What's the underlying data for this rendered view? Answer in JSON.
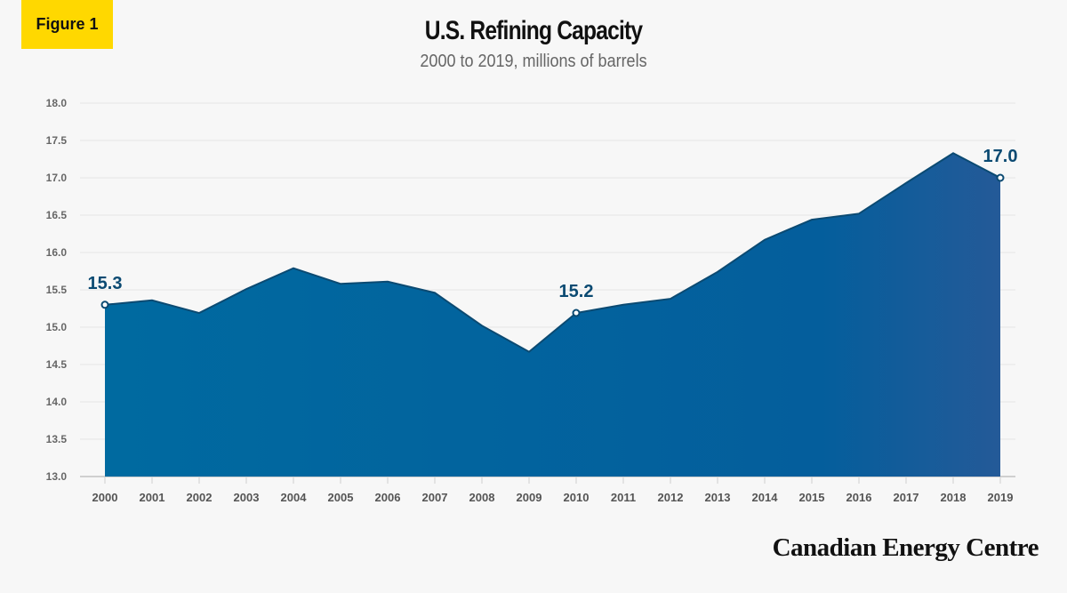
{
  "badge": "Figure 1",
  "brand": "Canadian Energy Centre",
  "chart_data": {
    "type": "area",
    "title": "U.S. Refining Capacity",
    "subtitle": "2000 to 2019, millions of barrels",
    "xlabel": "",
    "ylabel": "",
    "ylim": [
      13.0,
      18.0
    ],
    "yticks": [
      "13.0",
      "13.5",
      "14.0",
      "14.5",
      "15.0",
      "15.5",
      "16.0",
      "16.5",
      "17.0",
      "17.5",
      "18.0"
    ],
    "grid": true,
    "categories": [
      "2000",
      "2001",
      "2002",
      "2003",
      "2004",
      "2005",
      "2006",
      "2007",
      "2008",
      "2009",
      "2010",
      "2011",
      "2012",
      "2013",
      "2014",
      "2015",
      "2016",
      "2017",
      "2018",
      "2019"
    ],
    "values": [
      15.3,
      15.36,
      15.19,
      15.51,
      15.79,
      15.58,
      15.61,
      15.46,
      15.02,
      14.67,
      15.19,
      15.3,
      15.38,
      15.74,
      16.17,
      16.44,
      16.52,
      16.93,
      17.33,
      17.0
    ],
    "annotations": [
      {
        "category": "2000",
        "label": "15.3"
      },
      {
        "category": "2010",
        "label": "15.2"
      },
      {
        "category": "2019",
        "label": "17.0"
      }
    ],
    "colors": {
      "fill_start": "#006aa0",
      "fill_end": "#245a98",
      "line": "#0b4a72",
      "label": "#0b4a72"
    }
  }
}
